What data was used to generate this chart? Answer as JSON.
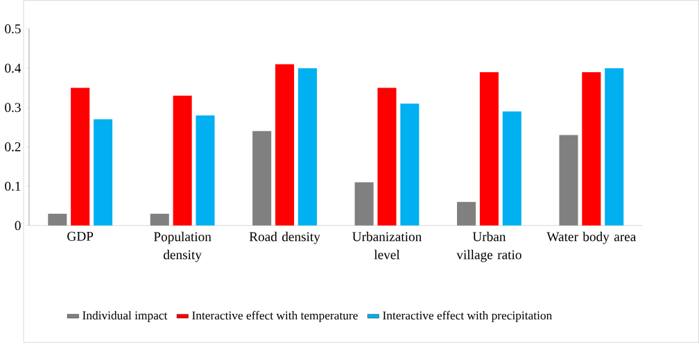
{
  "chart_data": {
    "type": "bar",
    "categories": [
      "GDP",
      "Population density",
      "Road density",
      "Urbanization level",
      "Urban village ratio",
      "Water body area"
    ],
    "series": [
      {
        "name": "Individual impact",
        "color": "#808080",
        "values": [
          0.03,
          0.03,
          0.24,
          0.11,
          0.06,
          0.23
        ]
      },
      {
        "name": "Interactive effect with temperature",
        "color": "#ff0000",
        "values": [
          0.35,
          0.33,
          0.41,
          0.35,
          0.39,
          0.39
        ]
      },
      {
        "name": "Interactive effect with precipitation",
        "color": "#00b0f0",
        "values": [
          0.27,
          0.28,
          0.4,
          0.31,
          0.29,
          0.4
        ]
      }
    ],
    "ylim": [
      0,
      0.5
    ],
    "yticks": [
      0,
      0.1,
      0.2,
      0.3,
      0.4,
      0.5
    ],
    "legend": "bottom"
  }
}
